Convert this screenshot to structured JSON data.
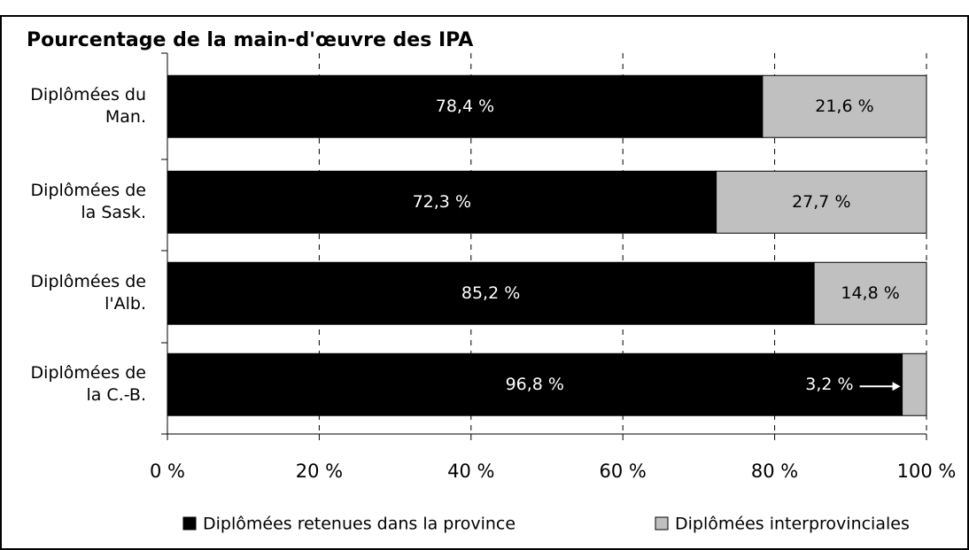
{
  "chart_data": {
    "type": "stacked-barh",
    "title": "Pourcentage de la main-d'œuvre des IPA",
    "categories": [
      "Diplômées du Man.",
      "Diplômées de la Sask.",
      "Diplômées de l'Alb.",
      "Diplômées de la C.-B."
    ],
    "series": [
      {
        "name": "Diplômées retenues dans la province",
        "color": "#000000",
        "values": [
          78.4,
          72.3,
          85.2,
          96.8
        ],
        "value_labels": [
          "78,4 %",
          "72,3 %",
          "85,2 %",
          "96,8 %"
        ]
      },
      {
        "name": "Diplômées interprovinciales",
        "color": "#c0c0c0",
        "values": [
          21.6,
          27.7,
          14.8,
          3.2
        ],
        "value_labels": [
          "21,6 %",
          "27,7 %",
          "14,8 %",
          "3,2 %"
        ]
      }
    ],
    "xlim": [
      0,
      100
    ],
    "xticks": [
      {
        "value": 0,
        "label": "0 %"
      },
      {
        "value": 20,
        "label": "20 %"
      },
      {
        "value": 40,
        "label": "40 %"
      },
      {
        "value": 60,
        "label": "60 %"
      },
      {
        "value": 80,
        "label": "80 %"
      },
      {
        "value": 100,
        "label": "100 %"
      }
    ],
    "grid": true,
    "legend": "bottom"
  }
}
